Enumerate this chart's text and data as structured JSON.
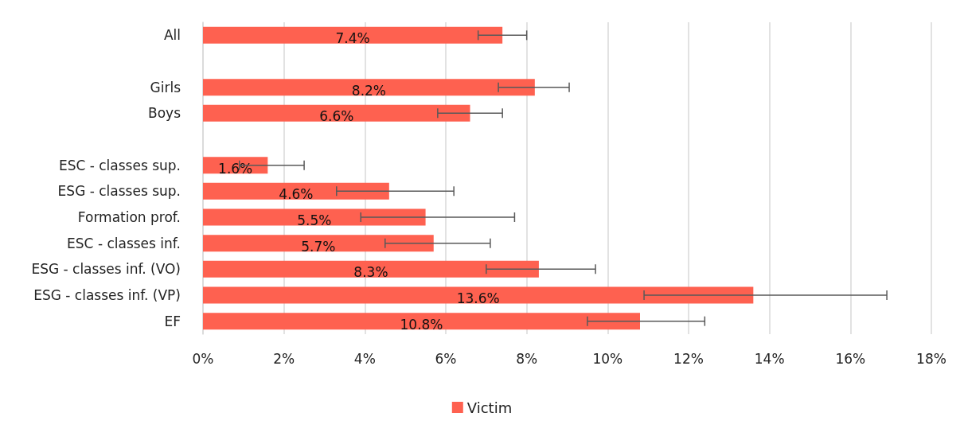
{
  "chart_data": {
    "type": "bar",
    "orientation": "horizontal",
    "categories": [
      "All",
      null,
      "Girls",
      "Boys",
      null,
      "ESC - classes sup.",
      "ESG - classes sup.",
      "Formation prof.",
      "ESC - classes inf.",
      "ESG - classes inf. (VO)",
      "ESG - classes inf. (VP)",
      "EF"
    ],
    "series": [
      {
        "name": "Victim",
        "color": "#fe6150",
        "values": [
          7.4,
          null,
          8.2,
          6.6,
          null,
          1.6,
          4.6,
          5.5,
          5.7,
          8.3,
          13.6,
          10.8
        ],
        "value_labels": [
          "7.4%",
          null,
          "8.2%",
          "6.6%",
          null,
          "1.6%",
          "4.6%",
          "5.5%",
          "5.7%",
          "8.3%",
          "13.6%",
          "10.8%"
        ],
        "errors": [
          [
            6.8,
            8.0
          ],
          null,
          [
            7.3,
            9.05
          ],
          [
            5.8,
            7.4
          ],
          null,
          [
            0.9,
            2.5
          ],
          [
            3.3,
            6.2
          ],
          [
            3.9,
            7.7
          ],
          [
            4.5,
            7.1
          ],
          [
            7.0,
            9.7
          ],
          [
            10.9,
            16.9
          ],
          [
            9.5,
            12.4
          ]
        ]
      }
    ],
    "xlim": [
      0,
      18
    ],
    "xticks": [
      {
        "value": 0,
        "label": "0%"
      },
      {
        "value": 2,
        "label": "2%"
      },
      {
        "value": 4,
        "label": "4%"
      },
      {
        "value": 6,
        "label": "6%"
      },
      {
        "value": 8,
        "label": "8%"
      },
      {
        "value": 10,
        "label": "10%"
      },
      {
        "value": 12,
        "label": "12%"
      },
      {
        "value": 14,
        "label": "14%"
      },
      {
        "value": 16,
        "label": "16%"
      },
      {
        "value": 18,
        "label": "18%"
      }
    ],
    "grid": "x",
    "legend": "bottom"
  }
}
